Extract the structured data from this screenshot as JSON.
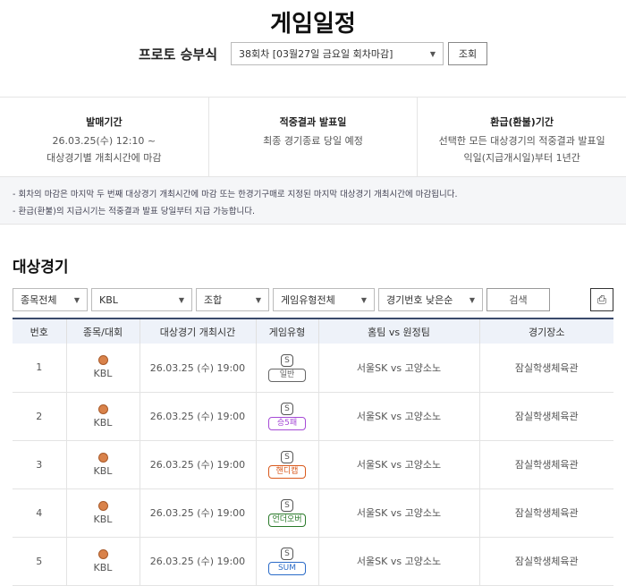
{
  "title": "게임일정",
  "round": {
    "label": "프로토 승부식",
    "selected": "38회차 [03월27일 금요일 회차마감]",
    "button": "조회"
  },
  "info": [
    {
      "title": "발매기간",
      "lines": [
        "26.03.25(수) 12:10 ~",
        "대상경기별 개최시간에 마감"
      ]
    },
    {
      "title": "적중결과 발표일",
      "lines": [
        "최종 경기종료 당일 예정",
        ""
      ]
    },
    {
      "title": "환급(환불)기간",
      "lines": [
        "선택한 모든 대상경기의 적중결과 발표일",
        "익일(지급개시일)부터 1년간"
      ]
    }
  ],
  "notes": [
    "- 회차의 마감은 마지막 두 번째 대상경기 개최시간에 마감 또는 한경기구매로 지정된 마지막 대상경기 개최시간에 마감됩니다.",
    "- 환급(환불)의 지급시기는 적중결과 발표 당일부터 지급 가능합니다."
  ],
  "section_title": "대상경기",
  "filters": {
    "sport": "종목전체",
    "league": "KBL",
    "combo": "조합",
    "game_type": "게임유형전체",
    "sort": "경기번호 낮은순",
    "search": "검색"
  },
  "table": {
    "headers": [
      "번호",
      "종목/대회",
      "대상경기 개최시간",
      "게임유형",
      "홈팀 vs 원정팀",
      "경기장소"
    ],
    "rows": [
      {
        "no": "1",
        "league": "KBL",
        "time": "26.03.25 (수) 19:00",
        "badge": "S",
        "type": "일반",
        "color": "#666666",
        "match": "서울SK vs 고양소노",
        "venue": "잠실학생체육관"
      },
      {
        "no": "2",
        "league": "KBL",
        "time": "26.03.25 (수) 19:00",
        "badge": "S",
        "type": "승5패",
        "color": "#a64bd6",
        "match": "서울SK vs 고양소노",
        "venue": "잠실학생체육관"
      },
      {
        "no": "3",
        "league": "KBL",
        "time": "26.03.25 (수) 19:00",
        "badge": "S",
        "type": "핸디캡",
        "color": "#d9591c",
        "match": "서울SK vs 고양소노",
        "venue": "잠실학생체육관"
      },
      {
        "no": "4",
        "league": "KBL",
        "time": "26.03.25 (수) 19:00",
        "badge": "S",
        "type": "언더오버",
        "color": "#2a7a2a",
        "match": "서울SK vs 고양소노",
        "venue": "잠실학생체육관"
      },
      {
        "no": "5",
        "league": "KBL",
        "time": "26.03.25 (수) 19:00",
        "badge": "S",
        "type": "SUM",
        "color": "#2a6bc8",
        "match": "서울SK vs 고양소노",
        "venue": "잠실학생체육관"
      }
    ]
  }
}
